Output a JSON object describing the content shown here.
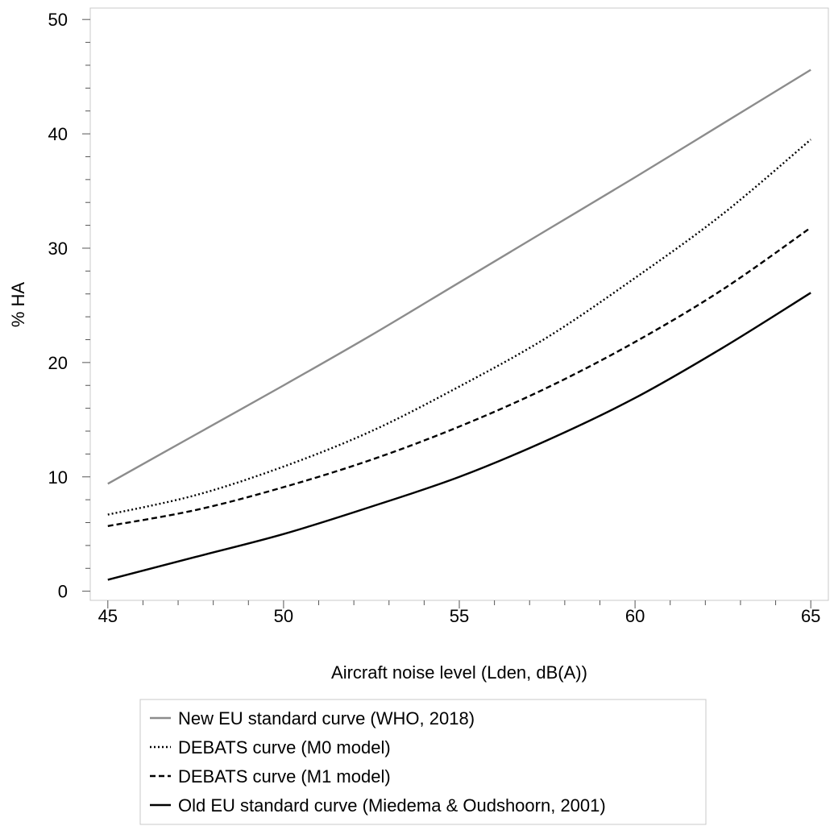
{
  "chart_data": {
    "type": "line",
    "xlabel": "Aircraft noise level (Lden, dB(A))",
    "ylabel": "% HA",
    "xlim": [
      44.5,
      65.5
    ],
    "ylim": [
      -0.8,
      51
    ],
    "x_ticks": [
      45,
      50,
      55,
      60,
      65
    ],
    "x_minor_step": 1,
    "y_ticks": [
      0,
      10,
      20,
      30,
      40,
      50
    ],
    "y_minor_step": 2,
    "grid": false,
    "legend_position": "bottom",
    "x": [
      45,
      47.5,
      50,
      52.5,
      55,
      57.5,
      60,
      62.5,
      65
    ],
    "series": [
      {
        "name": "New EU standard curve (WHO, 2018)",
        "style": "solid",
        "color": "#8c8c8c",
        "values": [
          9.4,
          13.7,
          18.0,
          22.4,
          27.0,
          31.6,
          36.2,
          40.9,
          45.6
        ]
      },
      {
        "name": "DEBATS curve (M0 model)",
        "style": "dotted",
        "color": "#000000",
        "values": [
          6.7,
          8.4,
          10.9,
          14.0,
          17.9,
          22.2,
          27.4,
          33.0,
          39.5
        ]
      },
      {
        "name": "DEBATS curve (M1 model)",
        "style": "dashed",
        "color": "#000000",
        "values": [
          5.7,
          7.1,
          9.1,
          11.5,
          14.4,
          17.8,
          21.8,
          26.4,
          31.8
        ]
      },
      {
        "name": "Old EU standard curve (Miedema & Oudshoorn, 2001)",
        "style": "solid",
        "color": "#000000",
        "values": [
          1.0,
          3.0,
          5.0,
          7.4,
          10.0,
          13.2,
          16.9,
          21.3,
          26.1
        ]
      }
    ]
  }
}
